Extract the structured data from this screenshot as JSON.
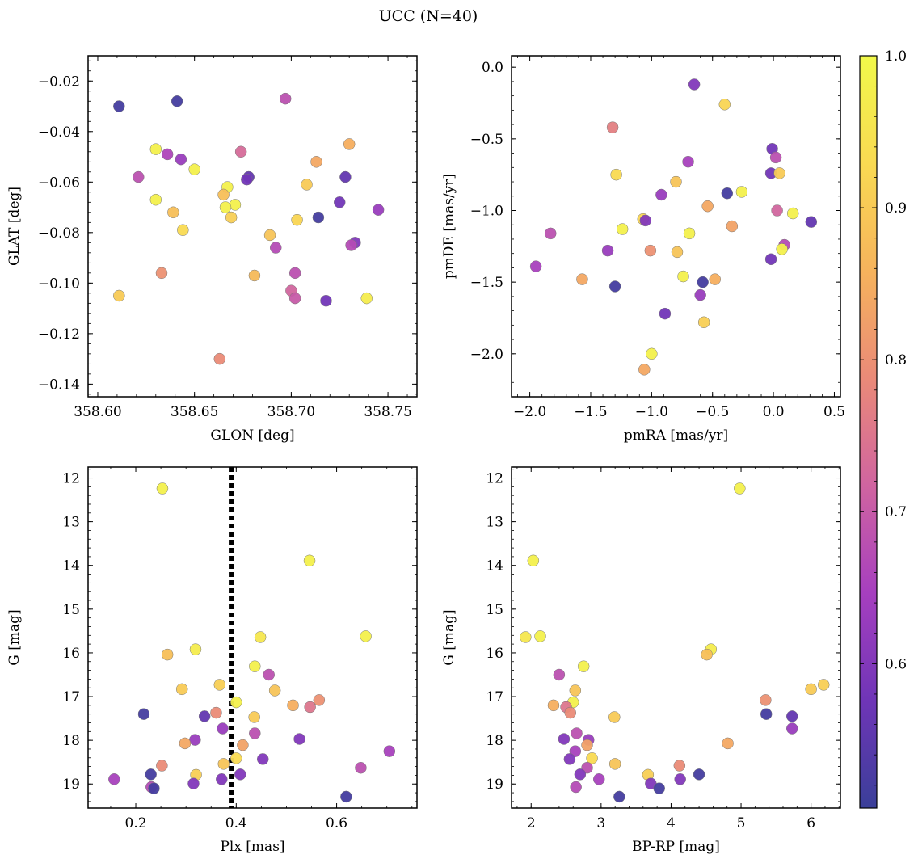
{
  "figure": {
    "suptitle": "UCC (N=40)"
  },
  "colorbar": {
    "vmin": 0.505,
    "vmax": 1.0,
    "ticks": [
      "0.6",
      "0.7",
      "0.8",
      "0.9",
      "1.0"
    ],
    "colormap": "plasma",
    "colors": [
      "#3a3f99",
      "#6f35b7",
      "#a63fbf",
      "#d064a0",
      "#ea8a78",
      "#f6b35c",
      "#f9da52",
      "#f1f94a"
    ]
  },
  "chart_data": [
    {
      "type": "scatter",
      "title": "",
      "xlabel": "GLON [deg]",
      "ylabel": "GLAT [deg]",
      "xlim": [
        358.595,
        358.765
      ],
      "ylim": [
        -0.145,
        -0.01
      ],
      "yinvert": false,
      "xticks": [
        "358.60",
        "358.65",
        "358.70",
        "358.75"
      ],
      "yticks": [
        "−0.02",
        "−0.04",
        "−0.06",
        "−0.08",
        "−0.10",
        "−0.12",
        "−0.14"
      ],
      "points": [
        {
          "x": 358.611,
          "y": -0.03,
          "c": 0.52
        },
        {
          "x": 358.641,
          "y": -0.028,
          "c": 0.52
        },
        {
          "x": 358.697,
          "y": -0.027,
          "c": 0.68
        },
        {
          "x": 358.63,
          "y": -0.047,
          "c": 0.98
        },
        {
          "x": 358.636,
          "y": -0.049,
          "c": 0.66
        },
        {
          "x": 358.643,
          "y": -0.051,
          "c": 0.63
        },
        {
          "x": 358.65,
          "y": -0.055,
          "c": 0.98
        },
        {
          "x": 358.621,
          "y": -0.058,
          "c": 0.68
        },
        {
          "x": 358.674,
          "y": -0.048,
          "c": 0.73
        },
        {
          "x": 358.73,
          "y": -0.045,
          "c": 0.85
        },
        {
          "x": 358.713,
          "y": -0.052,
          "c": 0.84
        },
        {
          "x": 358.678,
          "y": -0.058,
          "c": 0.56
        },
        {
          "x": 358.677,
          "y": -0.059,
          "c": 0.58
        },
        {
          "x": 358.728,
          "y": -0.058,
          "c": 0.56
        },
        {
          "x": 358.667,
          "y": -0.062,
          "c": 0.98
        },
        {
          "x": 358.708,
          "y": -0.061,
          "c": 0.9
        },
        {
          "x": 358.665,
          "y": -0.065,
          "c": 0.88
        },
        {
          "x": 358.63,
          "y": -0.067,
          "c": 0.98
        },
        {
          "x": 358.725,
          "y": -0.068,
          "c": 0.58
        },
        {
          "x": 358.671,
          "y": -0.069,
          "c": 0.98
        },
        {
          "x": 358.666,
          "y": -0.07,
          "c": 0.98
        },
        {
          "x": 358.745,
          "y": -0.071,
          "c": 0.63
        },
        {
          "x": 358.639,
          "y": -0.072,
          "c": 0.88
        },
        {
          "x": 358.669,
          "y": -0.074,
          "c": 0.91
        },
        {
          "x": 358.714,
          "y": -0.074,
          "c": 0.52
        },
        {
          "x": 358.703,
          "y": -0.075,
          "c": 0.92
        },
        {
          "x": 358.644,
          "y": -0.079,
          "c": 0.93
        },
        {
          "x": 358.689,
          "y": -0.081,
          "c": 0.89
        },
        {
          "x": 358.733,
          "y": -0.084,
          "c": 0.6
        },
        {
          "x": 358.731,
          "y": -0.085,
          "c": 0.67
        },
        {
          "x": 358.692,
          "y": -0.086,
          "c": 0.67
        },
        {
          "x": 358.633,
          "y": -0.096,
          "c": 0.8
        },
        {
          "x": 358.702,
          "y": -0.096,
          "c": 0.68
        },
        {
          "x": 358.681,
          "y": -0.097,
          "c": 0.87
        },
        {
          "x": 358.7,
          "y": -0.103,
          "c": 0.72
        },
        {
          "x": 358.611,
          "y": -0.105,
          "c": 0.9
        },
        {
          "x": 358.702,
          "y": -0.106,
          "c": 0.7
        },
        {
          "x": 358.739,
          "y": -0.106,
          "c": 0.97
        },
        {
          "x": 358.718,
          "y": -0.107,
          "c": 0.58
        },
        {
          "x": 358.663,
          "y": -0.13,
          "c": 0.79
        }
      ]
    },
    {
      "type": "scatter",
      "title": "",
      "xlabel": "pmRA [mas/yr]",
      "ylabel": "pmDE [mas/yr]",
      "xlim": [
        -2.15,
        0.55
      ],
      "ylim": [
        -2.3,
        0.08
      ],
      "yinvert": false,
      "xticks": [
        "−2.0",
        "−1.5",
        "−1.0",
        "−0.5",
        "0.0",
        "0.5"
      ],
      "yticks": [
        "0.0",
        "−0.5",
        "−1.0",
        "−1.5",
        "−2.0"
      ],
      "points": [
        {
          "x": -0.65,
          "y": -0.12,
          "c": 0.6
        },
        {
          "x": -0.4,
          "y": -0.26,
          "c": 0.92
        },
        {
          "x": -1.32,
          "y": -0.42,
          "c": 0.77
        },
        {
          "x": -0.01,
          "y": -0.57,
          "c": 0.58
        },
        {
          "x": 0.02,
          "y": -0.63,
          "c": 0.68
        },
        {
          "x": -0.7,
          "y": -0.66,
          "c": 0.65
        },
        {
          "x": -0.02,
          "y": -0.74,
          "c": 0.58
        },
        {
          "x": 0.05,
          "y": -0.74,
          "c": 0.9
        },
        {
          "x": -1.29,
          "y": -0.75,
          "c": 0.93
        },
        {
          "x": -0.8,
          "y": -0.8,
          "c": 0.89
        },
        {
          "x": -0.38,
          "y": -0.88,
          "c": 0.52
        },
        {
          "x": -0.26,
          "y": -0.87,
          "c": 0.98
        },
        {
          "x": -0.92,
          "y": -0.89,
          "c": 0.63
        },
        {
          "x": -0.54,
          "y": -0.97,
          "c": 0.84
        },
        {
          "x": 0.03,
          "y": -1.0,
          "c": 0.72
        },
        {
          "x": 0.16,
          "y": -1.02,
          "c": 0.98
        },
        {
          "x": -1.07,
          "y": -1.06,
          "c": 0.92
        },
        {
          "x": -1.05,
          "y": -1.07,
          "c": 0.6
        },
        {
          "x": 0.31,
          "y": -1.08,
          "c": 0.56
        },
        {
          "x": -0.34,
          "y": -1.11,
          "c": 0.83
        },
        {
          "x": -1.24,
          "y": -1.13,
          "c": 0.98
        },
        {
          "x": -0.69,
          "y": -1.16,
          "c": 0.98
        },
        {
          "x": -1.83,
          "y": -1.16,
          "c": 0.68
        },
        {
          "x": 0.09,
          "y": -1.24,
          "c": 0.67
        },
        {
          "x": 0.07,
          "y": -1.27,
          "c": 0.98
        },
        {
          "x": -1.01,
          "y": -1.28,
          "c": 0.8
        },
        {
          "x": -0.79,
          "y": -1.29,
          "c": 0.89
        },
        {
          "x": -1.36,
          "y": -1.28,
          "c": 0.63
        },
        {
          "x": -1.95,
          "y": -1.39,
          "c": 0.65
        },
        {
          "x": -0.02,
          "y": -1.34,
          "c": 0.58
        },
        {
          "x": -0.74,
          "y": -1.46,
          "c": 0.98
        },
        {
          "x": -1.57,
          "y": -1.48,
          "c": 0.84
        },
        {
          "x": -0.48,
          "y": -1.48,
          "c": 0.85
        },
        {
          "x": -0.58,
          "y": -1.5,
          "c": 0.52
        },
        {
          "x": -1.3,
          "y": -1.53,
          "c": 0.52
        },
        {
          "x": -0.6,
          "y": -1.59,
          "c": 0.63
        },
        {
          "x": -0.89,
          "y": -1.72,
          "c": 0.58
        },
        {
          "x": -0.57,
          "y": -1.78,
          "c": 0.91
        },
        {
          "x": -1.0,
          "y": -2.0,
          "c": 0.98
        },
        {
          "x": -1.06,
          "y": -2.11,
          "c": 0.84
        }
      ]
    },
    {
      "type": "scatter",
      "title": "",
      "xlabel": "Plx [mas]",
      "ylabel": "G [mag]",
      "xlim": [
        0.105,
        0.76
      ],
      "ylim": [
        11.75,
        19.55
      ],
      "yinvert": true,
      "vline": {
        "x": 0.39,
        "style": "dotted"
      },
      "xticks": [
        "0.2",
        "0.4",
        "0.6"
      ],
      "yticks": [
        "12",
        "13",
        "14",
        "15",
        "16",
        "17",
        "18",
        "19"
      ],
      "points": [
        {
          "x": 0.253,
          "y": 12.24,
          "c": 0.98
        },
        {
          "x": 0.546,
          "y": 13.89,
          "c": 0.98
        },
        {
          "x": 0.448,
          "y": 15.64,
          "c": 0.96
        },
        {
          "x": 0.658,
          "y": 15.62,
          "c": 0.98
        },
        {
          "x": 0.319,
          "y": 15.92,
          "c": 0.97
        },
        {
          "x": 0.263,
          "y": 16.04,
          "c": 0.88
        },
        {
          "x": 0.437,
          "y": 16.31,
          "c": 0.98
        },
        {
          "x": 0.465,
          "y": 16.5,
          "c": 0.68
        },
        {
          "x": 0.367,
          "y": 16.73,
          "c": 0.91
        },
        {
          "x": 0.292,
          "y": 16.83,
          "c": 0.9
        },
        {
          "x": 0.477,
          "y": 16.86,
          "c": 0.89
        },
        {
          "x": 0.4,
          "y": 17.13,
          "c": 0.98
        },
        {
          "x": 0.565,
          "y": 17.08,
          "c": 0.8
        },
        {
          "x": 0.513,
          "y": 17.2,
          "c": 0.85
        },
        {
          "x": 0.547,
          "y": 17.24,
          "c": 0.75
        },
        {
          "x": 0.216,
          "y": 17.4,
          "c": 0.52
        },
        {
          "x": 0.36,
          "y": 17.37,
          "c": 0.79
        },
        {
          "x": 0.337,
          "y": 17.45,
          "c": 0.56
        },
        {
          "x": 0.436,
          "y": 17.47,
          "c": 0.9
        },
        {
          "x": 0.373,
          "y": 17.73,
          "c": 0.63
        },
        {
          "x": 0.437,
          "y": 17.84,
          "c": 0.68
        },
        {
          "x": 0.526,
          "y": 17.97,
          "c": 0.6
        },
        {
          "x": 0.318,
          "y": 17.99,
          "c": 0.63
        },
        {
          "x": 0.298,
          "y": 18.07,
          "c": 0.84
        },
        {
          "x": 0.413,
          "y": 18.11,
          "c": 0.83
        },
        {
          "x": 0.705,
          "y": 18.25,
          "c": 0.65
        },
        {
          "x": 0.4,
          "y": 18.41,
          "c": 0.93
        },
        {
          "x": 0.453,
          "y": 18.43,
          "c": 0.6
        },
        {
          "x": 0.375,
          "y": 18.54,
          "c": 0.89
        },
        {
          "x": 0.252,
          "y": 18.58,
          "c": 0.79
        },
        {
          "x": 0.648,
          "y": 18.63,
          "c": 0.68
        },
        {
          "x": 0.23,
          "y": 18.78,
          "c": 0.52
        },
        {
          "x": 0.408,
          "y": 18.78,
          "c": 0.6
        },
        {
          "x": 0.32,
          "y": 18.79,
          "c": 0.91
        },
        {
          "x": 0.157,
          "y": 18.89,
          "c": 0.65
        },
        {
          "x": 0.371,
          "y": 18.89,
          "c": 0.6
        },
        {
          "x": 0.315,
          "y": 18.99,
          "c": 0.6
        },
        {
          "x": 0.231,
          "y": 19.07,
          "c": 0.67
        },
        {
          "x": 0.236,
          "y": 19.1,
          "c": 0.52
        },
        {
          "x": 0.619,
          "y": 19.29,
          "c": 0.52
        }
      ]
    },
    {
      "type": "scatter",
      "title": "",
      "xlabel": "BP-RP [mag]",
      "ylabel": "G [mag]",
      "xlim": [
        1.72,
        6.42
      ],
      "ylim": [
        11.75,
        19.55
      ],
      "yinvert": true,
      "xticks": [
        "2",
        "3",
        "4",
        "5",
        "6"
      ],
      "yticks": [
        "12",
        "13",
        "14",
        "15",
        "16",
        "17",
        "18",
        "19"
      ],
      "points": [
        {
          "x": 4.98,
          "y": 12.24,
          "c": 0.98
        },
        {
          "x": 2.03,
          "y": 13.89,
          "c": 0.98
        },
        {
          "x": 1.92,
          "y": 15.64,
          "c": 0.96
        },
        {
          "x": 2.13,
          "y": 15.62,
          "c": 0.98
        },
        {
          "x": 4.57,
          "y": 15.92,
          "c": 0.97
        },
        {
          "x": 4.51,
          "y": 16.04,
          "c": 0.88
        },
        {
          "x": 2.75,
          "y": 16.31,
          "c": 0.98
        },
        {
          "x": 2.4,
          "y": 16.5,
          "c": 0.68
        },
        {
          "x": 6.18,
          "y": 16.73,
          "c": 0.91
        },
        {
          "x": 6.0,
          "y": 16.83,
          "c": 0.9
        },
        {
          "x": 2.63,
          "y": 16.86,
          "c": 0.89
        },
        {
          "x": 2.6,
          "y": 17.13,
          "c": 0.98
        },
        {
          "x": 5.35,
          "y": 17.08,
          "c": 0.8
        },
        {
          "x": 2.32,
          "y": 17.2,
          "c": 0.85
        },
        {
          "x": 2.5,
          "y": 17.24,
          "c": 0.75
        },
        {
          "x": 5.36,
          "y": 17.4,
          "c": 0.52
        },
        {
          "x": 2.56,
          "y": 17.37,
          "c": 0.79
        },
        {
          "x": 5.73,
          "y": 17.45,
          "c": 0.56
        },
        {
          "x": 3.19,
          "y": 17.47,
          "c": 0.9
        },
        {
          "x": 5.73,
          "y": 17.73,
          "c": 0.63
        },
        {
          "x": 2.65,
          "y": 17.84,
          "c": 0.68
        },
        {
          "x": 2.47,
          "y": 17.97,
          "c": 0.6
        },
        {
          "x": 2.82,
          "y": 17.99,
          "c": 0.63
        },
        {
          "x": 4.81,
          "y": 18.07,
          "c": 0.84
        },
        {
          "x": 2.8,
          "y": 18.11,
          "c": 0.83
        },
        {
          "x": 2.63,
          "y": 18.25,
          "c": 0.65
        },
        {
          "x": 2.87,
          "y": 18.41,
          "c": 0.93
        },
        {
          "x": 2.55,
          "y": 18.43,
          "c": 0.6
        },
        {
          "x": 3.2,
          "y": 18.54,
          "c": 0.89
        },
        {
          "x": 4.12,
          "y": 18.58,
          "c": 0.79
        },
        {
          "x": 2.8,
          "y": 18.63,
          "c": 0.68
        },
        {
          "x": 4.4,
          "y": 18.78,
          "c": 0.52
        },
        {
          "x": 2.7,
          "y": 18.78,
          "c": 0.6
        },
        {
          "x": 3.67,
          "y": 18.79,
          "c": 0.91
        },
        {
          "x": 2.97,
          "y": 18.89,
          "c": 0.65
        },
        {
          "x": 4.13,
          "y": 18.89,
          "c": 0.6
        },
        {
          "x": 3.71,
          "y": 18.99,
          "c": 0.6
        },
        {
          "x": 2.64,
          "y": 19.07,
          "c": 0.67
        },
        {
          "x": 3.83,
          "y": 19.1,
          "c": 0.52
        },
        {
          "x": 3.26,
          "y": 19.29,
          "c": 0.52
        }
      ]
    }
  ]
}
